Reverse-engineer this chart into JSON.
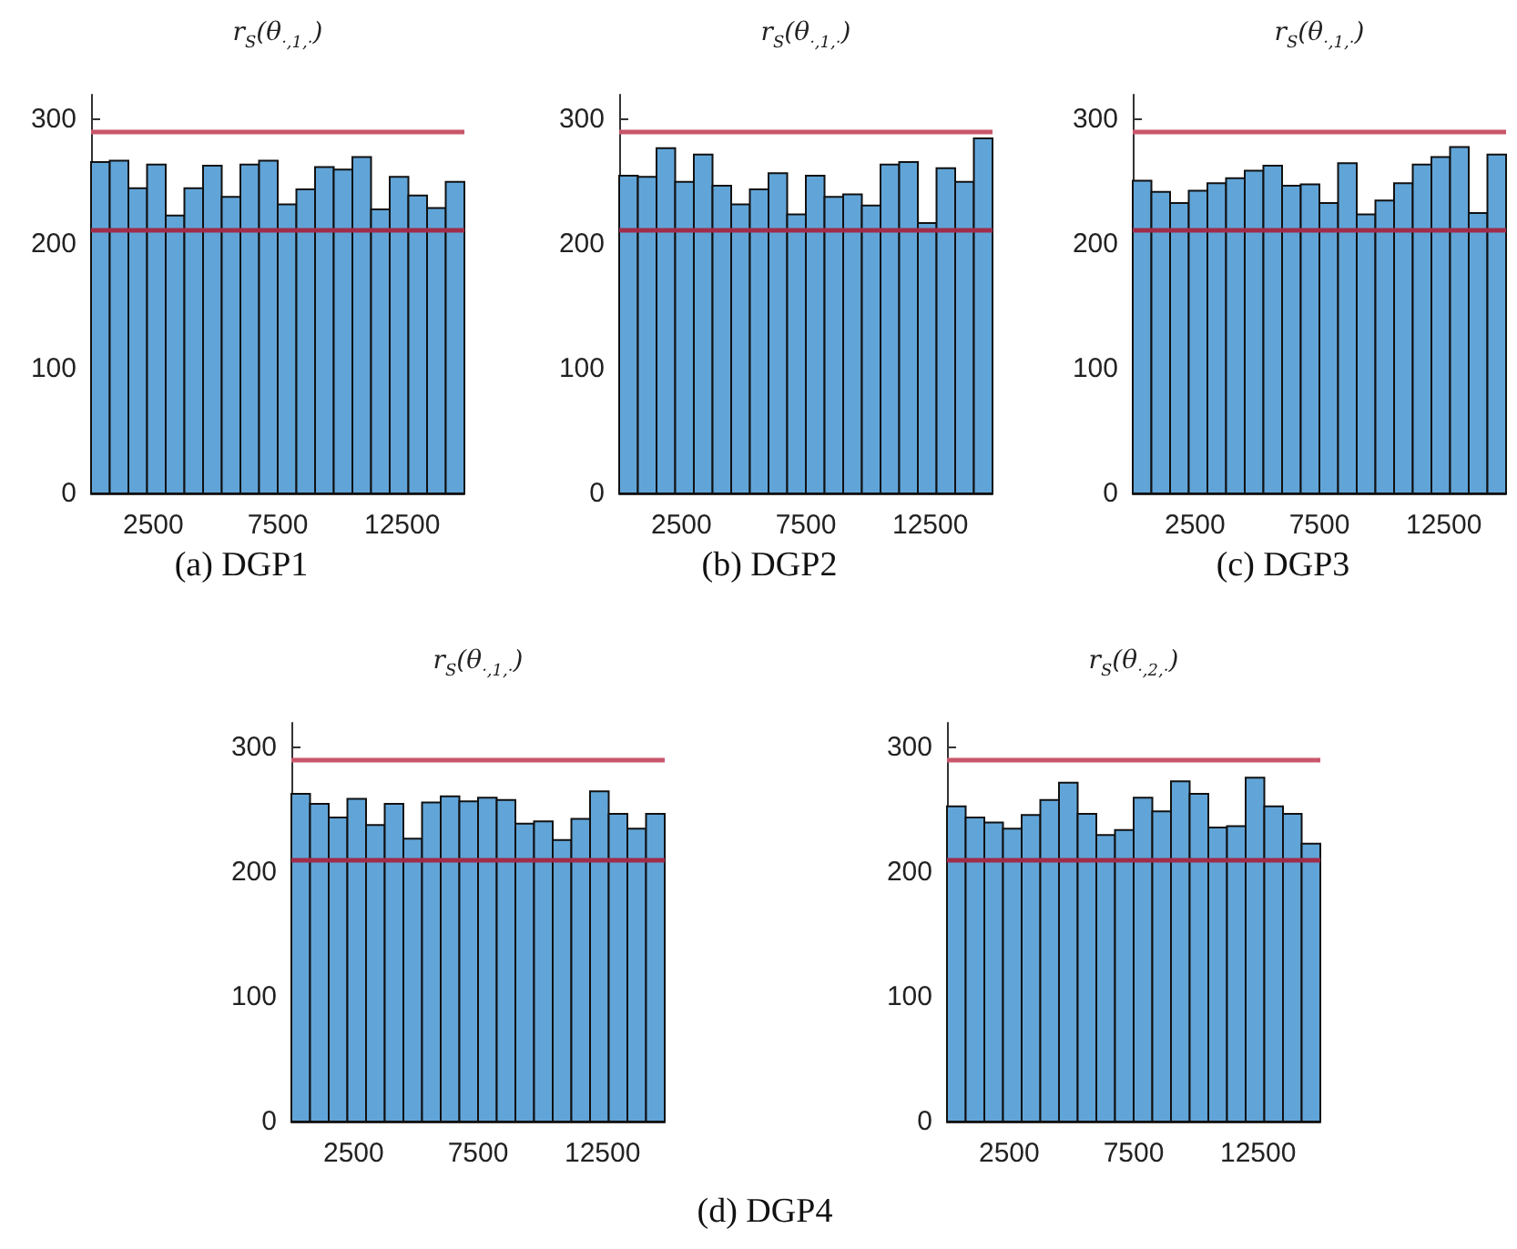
{
  "chart_data": [
    {
      "type": "histogram",
      "title": "r$_{S}$(θ$_{·,1,·}$)",
      "annotations": [
        "(a) DGP1"
      ],
      "color": "#61a5d8",
      "bins": [
        0,
        750,
        1500,
        2250,
        3000,
        3750,
        4500,
        5250,
        6000,
        6750,
        7500,
        8250,
        9000,
        9750,
        10500,
        11250,
        12000,
        12750,
        13500,
        14250,
        15000
      ],
      "values": [
        266,
        267,
        245,
        264,
        223,
        245,
        263,
        238,
        264,
        267,
        232,
        244,
        262,
        260,
        270,
        228,
        254,
        239,
        229,
        250
      ],
      "xlim": [
        0,
        15000
      ],
      "xticks": [
        2500,
        7500,
        12500
      ],
      "ylim": [
        0,
        320
      ],
      "yticks": [
        0,
        100,
        200,
        300
      ],
      "ref_lines": [
        {
          "axis": "y",
          "value": 291,
          "color": "#c9566b"
        },
        {
          "axis": "y",
          "value": 211,
          "color": "#a02c4a"
        }
      ]
    },
    {
      "type": "histogram",
      "title": "r$_{S}$(θ$_{·,1,·}$)",
      "annotations": [
        "(b) DGP2"
      ],
      "color": "#61a5d8",
      "bins": [
        0,
        750,
        1500,
        2250,
        3000,
        3750,
        4500,
        5250,
        6000,
        6750,
        7500,
        8250,
        9000,
        9750,
        10500,
        11250,
        12000,
        12750,
        13500,
        14250,
        15000
      ],
      "values": [
        255,
        254,
        277,
        250,
        272,
        247,
        232,
        244,
        257,
        224,
        255,
        238,
        240,
        231,
        264,
        266,
        217,
        261,
        250,
        285
      ],
      "xlim": [
        0,
        15000
      ],
      "xticks": [
        2500,
        7500,
        12500
      ],
      "ylim": [
        0,
        320
      ],
      "yticks": [
        0,
        100,
        200,
        300
      ],
      "ref_lines": [
        {
          "axis": "y",
          "value": 291,
          "color": "#c9566b"
        },
        {
          "axis": "y",
          "value": 211,
          "color": "#a02c4a"
        }
      ]
    },
    {
      "type": "histogram",
      "title": "r$_{S}$(θ$_{·,1,·}$)",
      "annotations": [
        "(c) DGP3"
      ],
      "color": "#61a5d8",
      "bins": [
        0,
        750,
        1500,
        2250,
        3000,
        3750,
        4500,
        5250,
        6000,
        6750,
        7500,
        8250,
        9000,
        9750,
        10500,
        11250,
        12000,
        12750,
        13500,
        14250,
        15000
      ],
      "values": [
        251,
        242,
        233,
        243,
        249,
        253,
        259,
        263,
        247,
        248,
        233,
        265,
        224,
        235,
        249,
        264,
        270,
        278,
        225,
        272
      ],
      "xlim": [
        0,
        15000
      ],
      "xticks": [
        2500,
        7500,
        12500
      ],
      "ylim": [
        0,
        320
      ],
      "yticks": [
        0,
        100,
        200,
        300
      ],
      "ref_lines": [
        {
          "axis": "y",
          "value": 291,
          "color": "#c9566b"
        },
        {
          "axis": "y",
          "value": 211,
          "color": "#a02c4a"
        }
      ]
    },
    {
      "type": "histogram",
      "title": "r$_{S}$(θ$_{·,1,·}$)",
      "annotations": [
        "(d) DGP4"
      ],
      "color": "#61a5d8",
      "bins": [
        0,
        750,
        1500,
        2250,
        3000,
        3750,
        4500,
        5250,
        6000,
        6750,
        7500,
        8250,
        9000,
        9750,
        10500,
        11250,
        12000,
        12750,
        13500,
        14250,
        15000
      ],
      "values": [
        263,
        255,
        244,
        259,
        238,
        255,
        227,
        256,
        261,
        257,
        260,
        258,
        239,
        241,
        226,
        243,
        265,
        247,
        235,
        247
      ],
      "xlim": [
        0,
        15000
      ],
      "xticks": [
        2500,
        7500,
        12500
      ],
      "ylim": [
        0,
        320
      ],
      "yticks": [
        0,
        100,
        200,
        300
      ],
      "ref_lines": [
        {
          "axis": "y",
          "value": 290,
          "color": "#c9566b"
        },
        {
          "axis": "y",
          "value": 210,
          "color": "#a02c4a"
        }
      ]
    },
    {
      "type": "histogram",
      "title": "r$_{S}$(θ$_{·,2,·}$)",
      "color": "#61a5d8",
      "bins": [
        0,
        750,
        1500,
        2250,
        3000,
        3750,
        4500,
        5250,
        6000,
        6750,
        7500,
        8250,
        9000,
        9750,
        10500,
        11250,
        12000,
        12750,
        13500,
        14250,
        15000
      ],
      "values": [
        253,
        244,
        240,
        235,
        246,
        258,
        272,
        247,
        230,
        234,
        260,
        249,
        273,
        263,
        236,
        237,
        276,
        253,
        247,
        223
      ],
      "xlim": [
        0,
        15000
      ],
      "xticks": [
        2500,
        7500,
        12500
      ],
      "ylim": [
        0,
        320
      ],
      "yticks": [
        0,
        100,
        200,
        300
      ],
      "ref_lines": [
        {
          "axis": "y",
          "value": 290,
          "color": "#c9566b"
        },
        {
          "axis": "y",
          "value": 210,
          "color": "#a02c4a"
        }
      ]
    }
  ]
}
